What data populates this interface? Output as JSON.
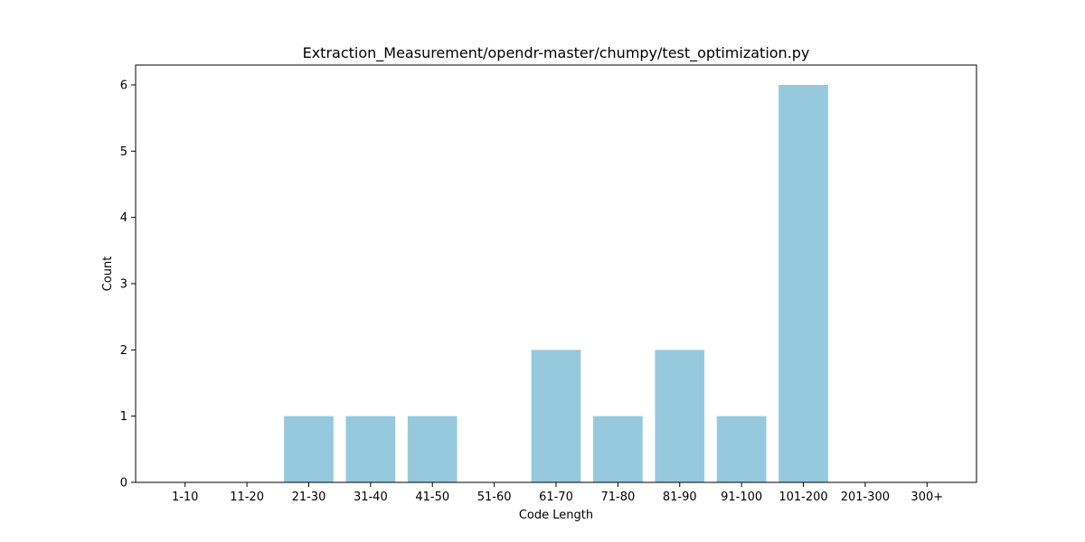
{
  "chart_data": {
    "type": "bar",
    "title": "Extraction_Measurement/opendr-master/chumpy/test_optimization.py",
    "xlabel": "Code Length",
    "ylabel": "Count",
    "categories": [
      "1-10",
      "11-20",
      "21-30",
      "31-40",
      "41-50",
      "51-60",
      "61-70",
      "71-80",
      "81-90",
      "91-100",
      "101-200",
      "201-300",
      "300+"
    ],
    "values": [
      0,
      0,
      1,
      1,
      1,
      0,
      2,
      1,
      2,
      1,
      6,
      0,
      0
    ],
    "ylim": [
      0,
      6.3
    ],
    "yticks": [
      0,
      1,
      2,
      3,
      4,
      5,
      6
    ],
    "grid": false,
    "legend": "none",
    "bar_color": "#96c9dd"
  }
}
